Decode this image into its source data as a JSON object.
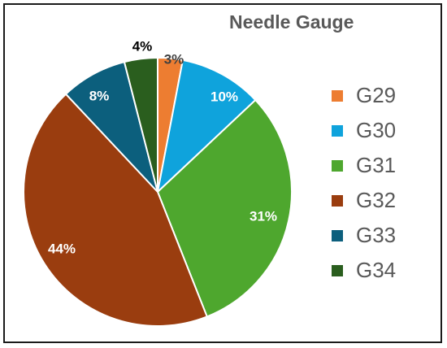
{
  "chart_data": {
    "type": "pie",
    "title": "Needle Gauge",
    "categories": [
      "G29",
      "G30",
      "G31",
      "G32",
      "G33",
      "G34"
    ],
    "values": [
      3,
      10,
      31,
      44,
      8,
      4
    ],
    "data_labels": [
      "3%",
      "10%",
      "31%",
      "44%",
      "8%",
      "4%"
    ],
    "colors": [
      "#ED7D31",
      "#0FA3DC",
      "#4EA72E",
      "#9A3D0F",
      "#0C5F7D",
      "#2A5E1E"
    ],
    "label_colors": [
      "#404040",
      "#ffffff",
      "#ffffff",
      "#ffffff",
      "#ffffff",
      "#000000"
    ],
    "legend_position": "right"
  }
}
